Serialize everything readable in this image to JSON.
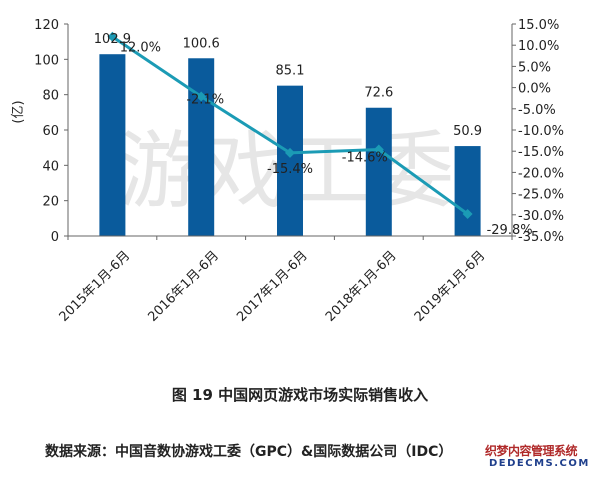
{
  "chart_data": {
    "type": "bar",
    "categories": [
      "2015年1月-6月",
      "2016年1月-6月",
      "2017年1月-6月",
      "2018年1月-6月",
      "2019年1月-6月"
    ],
    "series": [
      {
        "type": "bar",
        "values": [
          102.9,
          100.6,
          85.1,
          72.6,
          50.9
        ],
        "color": "#0a5b9c"
      },
      {
        "type": "line",
        "axis": "right",
        "values": [
          12.0,
          -2.1,
          -15.4,
          -14.6,
          -29.8
        ],
        "color": "#1b9bb5"
      }
    ],
    "bar_labels": [
      "102.9",
      "100.6",
      "85.1",
      "72.6",
      "50.9"
    ],
    "line_labels": [
      "12.0%",
      "-2.1%",
      "-15.4%",
      "-14.6%",
      "-29.8%"
    ],
    "ylabel": "(亿)",
    "ylim": [
      0,
      120
    ],
    "y_ticks": [
      "0",
      "20",
      "40",
      "60",
      "80",
      "100",
      "120"
    ],
    "y2lim": [
      -35,
      15
    ],
    "y2_ticks": [
      "-35.0%",
      "-30.0%",
      "-25.0%",
      "-20.0%",
      "-15.0%",
      "-10.0%",
      "-5.0%",
      "0.0%",
      "5.0%",
      "10.0%",
      "15.0%"
    ],
    "grid": false,
    "legend": "none",
    "watermark": "游戏工委"
  },
  "caption": "图 19  中国网页游戏市场实际销售收入",
  "source": "数据来源：中国音数协游戏工委（GPC）&国际数据公司（IDC）",
  "logo": {
    "line1": "织梦内容管理系统",
    "line2": "DEDECMS.COM"
  }
}
